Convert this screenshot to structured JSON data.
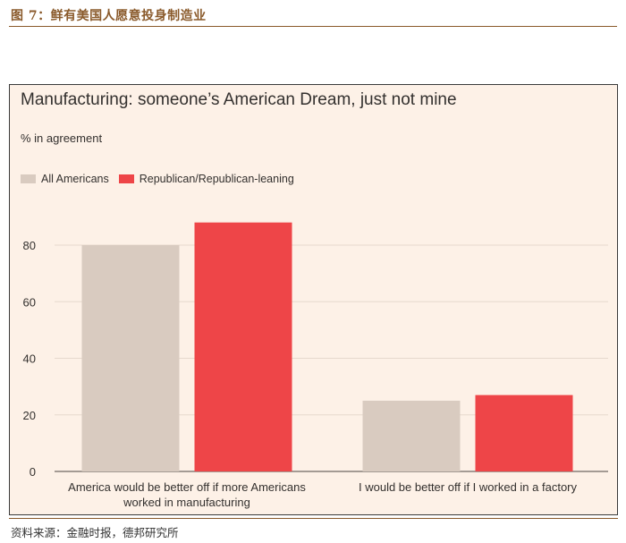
{
  "figure_title": "图 7：鲜有美国人愿意投身制造业",
  "source": "资料来源：金融时报，德邦研究所",
  "chart_data": {
    "type": "bar",
    "title": "Manufacturing: someone’s American Dream, just not mine",
    "ylabel": "% in agreement",
    "xlabel": "",
    "categories": [
      [
        "America would be better off if more Americans",
        "worked in manufacturing"
      ],
      [
        "I would be better off if I worked in a factory"
      ]
    ],
    "series": [
      {
        "name": "All Americans",
        "color": "#d9cbc0",
        "values": [
          80,
          25
        ]
      },
      {
        "name": "Republican/Republican-leaning",
        "color": "#ee4548",
        "values": [
          88,
          27
        ]
      }
    ],
    "ylim": [
      0,
      90
    ],
    "yticks": [
      0,
      20,
      40,
      60,
      80
    ],
    "grid": true,
    "legend_position": "top-left",
    "gridline_color": "#e6d9cd"
  }
}
